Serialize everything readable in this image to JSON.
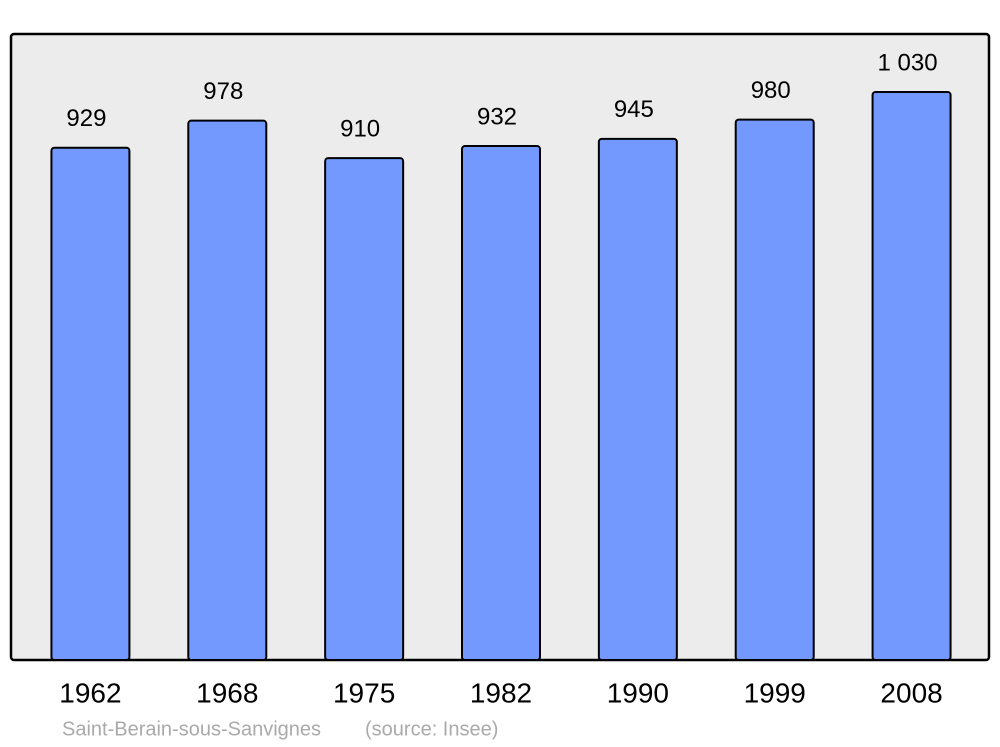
{
  "chart_data": {
    "type": "bar",
    "categories": [
      "1962",
      "1968",
      "1975",
      "1982",
      "1990",
      "1999",
      "2008"
    ],
    "values": [
      929,
      978,
      910,
      932,
      945,
      980,
      1030
    ],
    "value_labels": [
      "929",
      "978",
      "910",
      "932",
      "945",
      "980",
      "1 030"
    ],
    "color": "#7399ff",
    "caption": "Saint-Berain-sous-Sanvignes",
    "source": "(source: Insee)"
  }
}
